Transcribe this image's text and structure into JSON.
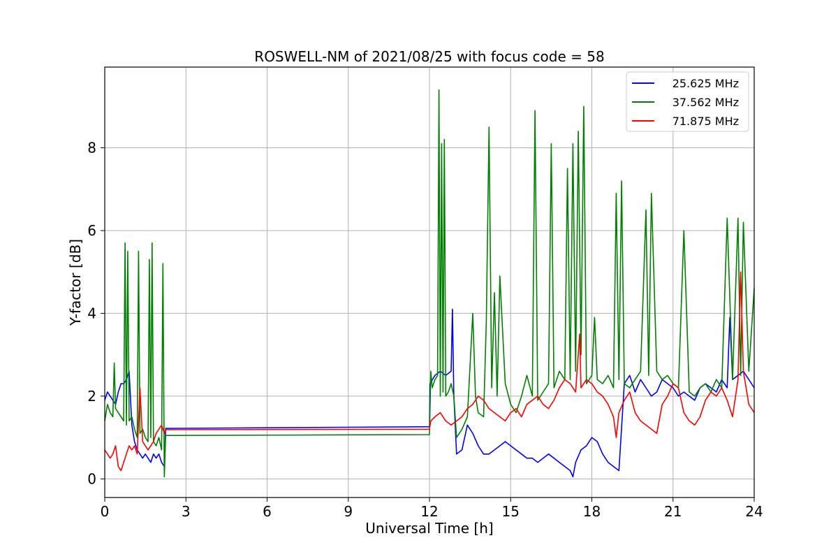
{
  "chart_data": {
    "type": "line",
    "title": "ROSWELL-NM of 2021/08/25 with focus code = 58",
    "xlabel": "Universal Time [h]",
    "ylabel": "Y-factor [dB]",
    "xlim": [
      0,
      24
    ],
    "ylim": [
      -0.45,
      9.95
    ],
    "xticks": [
      0,
      3,
      6,
      9,
      12,
      15,
      18,
      21,
      24
    ],
    "yticks": [
      0,
      2,
      4,
      6,
      8
    ],
    "grid": true,
    "legend_position": "top-right",
    "series": [
      {
        "name": "25.625 MHz",
        "color": "#0000ff",
        "x": [
          0,
          0.1,
          0.2,
          0.3,
          0.4,
          0.5,
          0.6,
          0.7,
          0.8,
          0.9,
          1.0,
          1.1,
          1.2,
          1.3,
          1.4,
          1.5,
          1.6,
          1.7,
          1.8,
          1.9,
          2.0,
          2.1,
          2.2,
          2.25,
          12.0,
          12.02,
          12.2,
          12.4,
          12.6,
          12.8,
          12.85,
          12.9,
          13.0,
          13.2,
          13.4,
          13.6,
          13.8,
          14.0,
          14.2,
          14.4,
          14.6,
          14.8,
          15.0,
          15.2,
          15.4,
          15.6,
          15.8,
          16.0,
          16.2,
          16.4,
          16.6,
          16.8,
          17.0,
          17.2,
          17.3,
          17.4,
          17.6,
          17.8,
          18.0,
          18.2,
          18.4,
          18.6,
          18.8,
          19.0,
          19.2,
          19.4,
          19.6,
          19.8,
          20.0,
          20.2,
          20.4,
          20.6,
          20.8,
          21.0,
          21.2,
          21.4,
          21.6,
          21.8,
          22.0,
          22.2,
          22.4,
          22.6,
          22.8,
          23.0,
          23.1,
          23.2,
          23.4,
          23.6,
          23.8,
          24.0
        ],
        "y": [
          1.9,
          2.1,
          2.0,
          1.9,
          1.8,
          2.1,
          2.3,
          2.3,
          2.4,
          2.6,
          1.3,
          0.9,
          0.7,
          0.6,
          0.5,
          0.6,
          0.5,
          0.4,
          0.6,
          0.5,
          0.6,
          0.4,
          0.3,
          1.22,
          1.26,
          2.3,
          2.5,
          2.6,
          2.5,
          2.6,
          4.1,
          2.0,
          0.6,
          0.7,
          1.3,
          1.1,
          0.8,
          0.6,
          0.6,
          0.7,
          0.8,
          0.9,
          0.8,
          0.7,
          0.6,
          0.5,
          0.5,
          0.4,
          0.5,
          0.6,
          0.5,
          0.4,
          0.3,
          0.2,
          0.05,
          0.4,
          0.7,
          0.8,
          1.0,
          0.9,
          0.6,
          0.4,
          0.3,
          0.2,
          2.3,
          2.5,
          2.1,
          2.4,
          2.2,
          2.0,
          2.1,
          2.4,
          2.3,
          2.2,
          2.0,
          2.1,
          2.0,
          1.9,
          2.2,
          2.3,
          2.2,
          2.1,
          2.4,
          2.2,
          3.9,
          2.4,
          2.5,
          2.6,
          2.4,
          2.2
        ]
      },
      {
        "name": "37.562 MHz",
        "color": "#008000",
        "x": [
          0,
          0.1,
          0.2,
          0.3,
          0.35,
          0.4,
          0.5,
          0.6,
          0.7,
          0.75,
          0.8,
          0.85,
          0.9,
          1.0,
          1.1,
          1.2,
          1.25,
          1.3,
          1.4,
          1.5,
          1.6,
          1.65,
          1.7,
          1.75,
          1.8,
          1.9,
          2.0,
          2.1,
          2.15,
          2.2,
          2.25,
          12.0,
          12.05,
          12.1,
          12.2,
          12.3,
          12.35,
          12.4,
          12.45,
          12.5,
          12.55,
          12.6,
          12.7,
          12.8,
          12.9,
          13.0,
          13.2,
          13.4,
          13.6,
          13.7,
          13.8,
          14.0,
          14.1,
          14.2,
          14.3,
          14.4,
          14.5,
          14.6,
          14.8,
          15.0,
          15.2,
          15.4,
          15.6,
          15.8,
          15.9,
          16.0,
          16.2,
          16.4,
          16.5,
          16.6,
          16.8,
          17.0,
          17.1,
          17.2,
          17.3,
          17.4,
          17.5,
          17.6,
          17.7,
          17.8,
          18.0,
          18.1,
          18.2,
          18.4,
          18.6,
          18.8,
          18.9,
          19.0,
          19.1,
          19.2,
          19.4,
          19.6,
          19.8,
          20.0,
          20.1,
          20.2,
          20.4,
          20.6,
          20.8,
          21.0,
          21.2,
          21.4,
          21.6,
          21.8,
          22.0,
          22.2,
          22.4,
          22.6,
          22.8,
          23.0,
          23.2,
          23.4,
          23.5,
          23.6,
          23.8,
          24.0
        ],
        "y": [
          1.4,
          1.8,
          1.6,
          1.5,
          2.8,
          1.7,
          1.6,
          1.5,
          1.4,
          5.7,
          1.3,
          5.5,
          1.4,
          1.5,
          1.2,
          1.0,
          5.5,
          1.1,
          1.2,
          1.0,
          0.9,
          5.3,
          1.0,
          5.7,
          0.9,
          0.8,
          1.0,
          0.7,
          5.2,
          0.05,
          1.05,
          1.07,
          2.6,
          2.2,
          2.4,
          2.5,
          9.4,
          2.0,
          8.1,
          2.1,
          8.2,
          2.0,
          2.1,
          2.3,
          2.0,
          1.0,
          1.2,
          1.5,
          4.0,
          2.0,
          1.6,
          1.5,
          3.8,
          8.5,
          2.2,
          4.5,
          2.0,
          4.9,
          2.3,
          1.8,
          1.6,
          2.0,
          2.5,
          2.0,
          8.9,
          1.9,
          2.1,
          2.3,
          8.1,
          2.2,
          2.6,
          2.4,
          7.5,
          2.4,
          8.1,
          2.6,
          8.4,
          3.0,
          9.0,
          2.3,
          2.5,
          3.9,
          2.4,
          2.3,
          2.5,
          2.2,
          6.9,
          2.4,
          7.2,
          2.3,
          2.2,
          2.4,
          2.6,
          6.5,
          2.5,
          6.9,
          2.6,
          2.4,
          2.5,
          2.3,
          2.2,
          6.0,
          2.1,
          2.0,
          2.2,
          2.3,
          2.1,
          2.4,
          2.2,
          6.3,
          2.4,
          6.3,
          2.5,
          6.2,
          2.6,
          4.6
        ]
      },
      {
        "name": "71.875 MHz",
        "color": "#ff0000",
        "x": [
          0,
          0.1,
          0.2,
          0.3,
          0.4,
          0.5,
          0.6,
          0.7,
          0.8,
          0.9,
          1.0,
          1.1,
          1.2,
          1.3,
          1.4,
          1.5,
          1.6,
          1.7,
          1.8,
          1.9,
          2.0,
          2.1,
          2.2,
          2.25,
          12.0,
          12.05,
          12.2,
          12.4,
          12.6,
          12.8,
          13.0,
          13.2,
          13.4,
          13.6,
          13.8,
          14.0,
          14.2,
          14.4,
          14.6,
          14.8,
          15.0,
          15.2,
          15.4,
          15.6,
          15.8,
          16.0,
          16.2,
          16.4,
          16.6,
          16.8,
          17.0,
          17.2,
          17.4,
          17.55,
          17.6,
          17.8,
          18.0,
          18.2,
          18.4,
          18.6,
          18.8,
          18.9,
          19.0,
          19.2,
          19.4,
          19.6,
          19.8,
          20.0,
          20.2,
          20.4,
          20.6,
          20.8,
          21.0,
          21.2,
          21.4,
          21.6,
          21.8,
          22.0,
          22.2,
          22.4,
          22.6,
          22.8,
          23.0,
          23.2,
          23.4,
          23.5,
          23.6,
          23.8,
          24.0
        ],
        "y": [
          0.7,
          0.6,
          0.5,
          0.6,
          0.8,
          0.3,
          0.2,
          0.4,
          0.6,
          0.8,
          0.7,
          0.8,
          0.6,
          2.2,
          0.9,
          0.8,
          0.7,
          0.8,
          0.9,
          1.1,
          1.2,
          1.3,
          1.1,
          1.19,
          1.2,
          1.4,
          1.5,
          1.6,
          1.4,
          1.3,
          1.4,
          1.5,
          1.7,
          1.8,
          2.0,
          1.9,
          1.7,
          1.6,
          1.5,
          1.4,
          1.6,
          1.7,
          1.5,
          1.8,
          1.9,
          2.0,
          1.8,
          1.7,
          1.9,
          2.2,
          2.4,
          2.3,
          2.1,
          3.5,
          2.2,
          2.4,
          2.3,
          2.1,
          2.0,
          1.8,
          1.5,
          1.0,
          1.6,
          1.9,
          2.1,
          1.6,
          1.4,
          1.3,
          1.2,
          1.1,
          1.8,
          2.0,
          2.3,
          2.2,
          1.6,
          1.4,
          1.3,
          1.5,
          1.9,
          2.1,
          2.0,
          2.2,
          1.9,
          1.5,
          2.4,
          5.0,
          2.6,
          1.8,
          1.6
        ]
      }
    ]
  }
}
